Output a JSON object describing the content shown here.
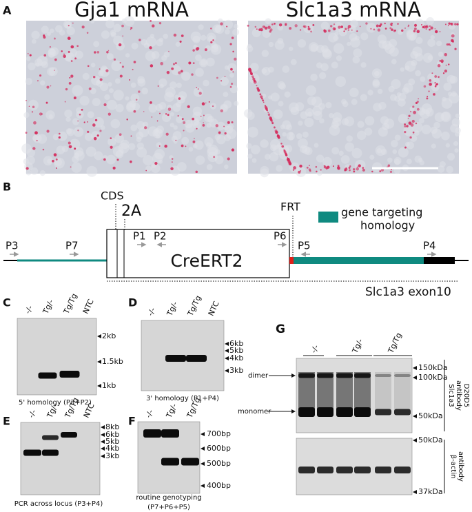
{
  "panel_a": {
    "letter": "A",
    "left_title": "Gja1 mRNA",
    "right_title": "Slc1a3 mRNA"
  },
  "panel_b": {
    "letter": "B",
    "cds": "CDS",
    "site_2a": "2A",
    "frt": "FRT",
    "legend_line1": "gene targeting",
    "legend_line2": "homology",
    "cassette": "CreERT2",
    "exon": "Slc1a3 exon10",
    "primers": [
      "P3",
      "P7",
      "P1",
      "P2",
      "P6",
      "P5",
      "P4"
    ]
  },
  "panel_c": {
    "letter": "C",
    "lanes": [
      "-/-",
      "Tg/-",
      "Tg/Tg",
      "NTC"
    ],
    "markers": [
      "2kb",
      "1.5kb",
      "1kb"
    ],
    "caption": "5' homology (P3+P2)"
  },
  "panel_d": {
    "letter": "D",
    "lanes": [
      "-/-",
      "Tg/-",
      "Tg/Tg",
      "NTC"
    ],
    "markers": [
      "6kb",
      "5kb",
      "4kb",
      "3kb"
    ],
    "caption": "3' homology (P1+P4)"
  },
  "panel_e": {
    "letter": "E",
    "lanes": [
      "-/-",
      "Tg/-",
      "Tg/Tg",
      "NTC"
    ],
    "markers": [
      "8kb",
      "6kb",
      "5kb",
      "4kb",
      "3kb"
    ],
    "caption": "PCR across locus (P3+P4)"
  },
  "panel_f": {
    "letter": "F",
    "lanes": [
      "-/-",
      "Tg/-",
      "Tg/Tg"
    ],
    "markers": [
      "700bp",
      "600bp",
      "500bp",
      "400bp"
    ],
    "caption_lines": [
      "routine genotyping",
      "(P7+P6+P5)"
    ]
  },
  "panel_g": {
    "letter": "G",
    "lanes": [
      "-/-",
      "Tg/-",
      "Tg/Tg"
    ],
    "band_labels": [
      "dimer",
      "monomer"
    ],
    "top_markers": [
      "150kDa",
      "100kDa",
      "50kDa"
    ],
    "bottom_markers": [
      "50kDa",
      "37kDa"
    ],
    "top_antibody_lines": [
      "Slc1a3",
      "antibody",
      "D20D5"
    ],
    "bottom_antibody_lines": [
      "β-actin",
      "antibody"
    ]
  }
}
